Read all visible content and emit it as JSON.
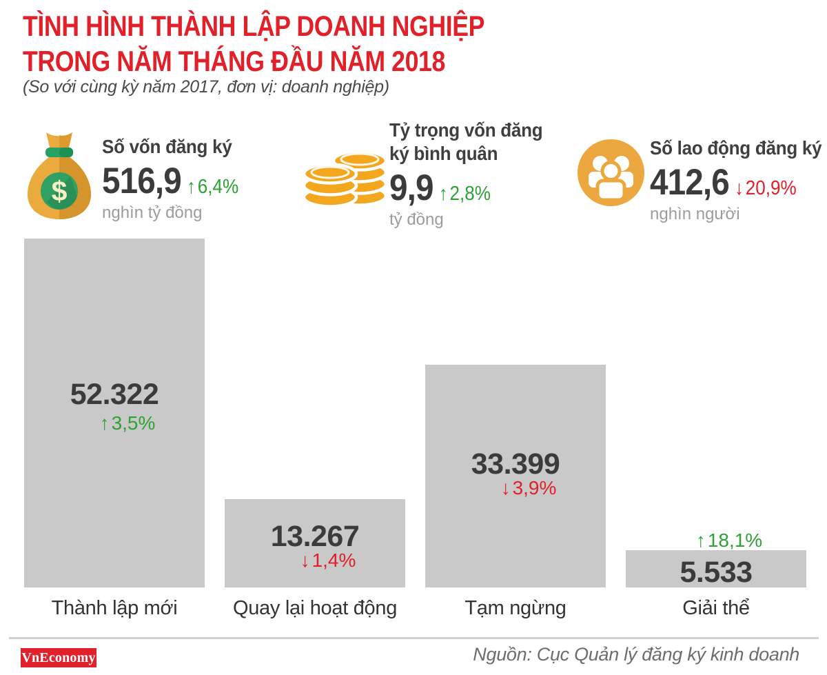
{
  "page": {
    "title_line1": "TÌNH HÌNH THÀNH LẬP DOANH NGHIỆP",
    "title_line2": "TRONG NĂM THÁNG ĐẦU NĂM 2018",
    "subtitle": "(So với cùng kỳ năm 2017, đơn vị: doanh nghiệp)"
  },
  "stats": [
    {
      "icon": "money-bag",
      "title": "Số vốn đăng ký",
      "value": "516,9",
      "arrow": "↑",
      "change": "6,4%",
      "direction": "up",
      "unit": "nghìn tỷ đồng"
    },
    {
      "icon": "coin-stack",
      "title": "Tỷ trọng vốn đăng ký bình quân",
      "value": "9,9",
      "arrow": "↑",
      "change": "2,8%",
      "direction": "up",
      "unit": "tỷ đồng"
    },
    {
      "icon": "people-group",
      "title": "Số lao động đăng ký",
      "value": "412,6",
      "arrow": "↓",
      "change": "20,9%",
      "direction": "down",
      "unit": "nghìn người"
    }
  ],
  "chart_data": {
    "type": "bar",
    "title": "Tình hình thành lập doanh nghiệp trong năm tháng đầu năm 2018",
    "unit": "doanh nghiệp",
    "categories": [
      "Thành lập mới",
      "Quay lại hoạt động",
      "Tạm ngừng",
      "Giải thể"
    ],
    "values": [
      52322,
      13267,
      33399,
      5533
    ],
    "value_labels": [
      "52.322",
      "13.267",
      "33.399",
      "5.533"
    ],
    "changes": [
      {
        "arrow": "↑",
        "label": "3,5%",
        "direction": "up"
      },
      {
        "arrow": "↓",
        "label": "1,4%",
        "direction": "down"
      },
      {
        "arrow": "↓",
        "label": "3,9%",
        "direction": "down"
      },
      {
        "arrow": "↑",
        "label": "18,1%",
        "direction": "up"
      }
    ],
    "ylim": [
      0,
      52322
    ],
    "grid": false,
    "legend": false,
    "bar_color": "#c9c9c9"
  },
  "footer": {
    "logo_text": "VnEconomy",
    "source": "Nguồn: Cục Quản lý đăng ký kinh doanh"
  },
  "colors": {
    "accent_red": "#e1202a",
    "positive_green": "#2fa135",
    "negative_red": "#e1202a",
    "bar_gray": "#c9c9c9",
    "text_dark": "#3b3b3b",
    "muted_gray": "#9c9c9c",
    "gold": "#eaa63b"
  }
}
